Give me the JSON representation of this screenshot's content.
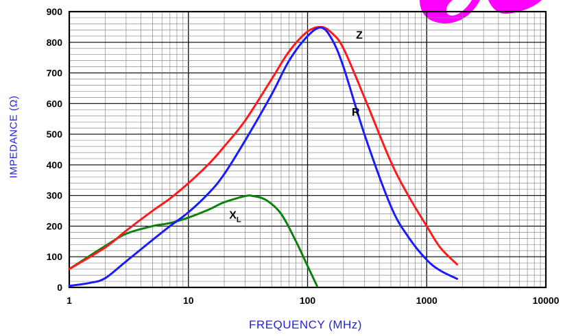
{
  "chart_data": {
    "type": "line",
    "title": "",
    "xlabel": "FREQUENCY (MHz)",
    "ylabel": "IMPEDANCE (Ω)",
    "x_scale": "log",
    "xlim": [
      1,
      10000
    ],
    "ylim": [
      0,
      900
    ],
    "x_ticks": [
      1,
      10,
      100,
      1000,
      10000
    ],
    "x_tick_labels": [
      "1",
      "10",
      "100",
      "1000",
      "10000"
    ],
    "y_ticks": [
      0,
      100,
      200,
      300,
      400,
      500,
      600,
      700,
      800,
      900
    ],
    "y_tick_labels": [
      "0",
      "100",
      "200",
      "300",
      "400",
      "500",
      "600",
      "700",
      "800",
      "900"
    ],
    "grid": true,
    "series": [
      {
        "name": "Z",
        "color": "#ff1a1a",
        "x": [
          1,
          2,
          3,
          5,
          7,
          10,
          15,
          20,
          30,
          50,
          70,
          100,
          130,
          160,
          200,
          300,
          500,
          700,
          1000,
          1300,
          1800
        ],
        "y": [
          60,
          130,
          185,
          250,
          290,
          340,
          405,
          460,
          545,
          680,
          770,
          835,
          850,
          830,
          780,
          620,
          410,
          300,
          200,
          130,
          75
        ]
      },
      {
        "name": "R",
        "color": "#1a1aff",
        "x": [
          1,
          1.5,
          2,
          3,
          5,
          7,
          10,
          15,
          20,
          30,
          50,
          70,
          100,
          130,
          160,
          200,
          300,
          500,
          700,
          1000,
          1300,
          1800
        ],
        "y": [
          5,
          15,
          30,
          85,
          155,
          200,
          245,
          310,
          370,
          480,
          630,
          740,
          820,
          848,
          810,
          720,
          500,
          265,
          165,
          90,
          55,
          28
        ]
      },
      {
        "name": "XL",
        "color": "#0a820a",
        "x": [
          1,
          2,
          3,
          5,
          7,
          10,
          15,
          20,
          30,
          35,
          45,
          60,
          80,
          100,
          120
        ],
        "y": [
          60,
          135,
          175,
          200,
          210,
          228,
          255,
          278,
          298,
          298,
          285,
          240,
          150,
          70,
          5
        ]
      }
    ],
    "annotations": [
      {
        "text": "Z",
        "series": "Z"
      },
      {
        "text": "R",
        "series": "R"
      },
      {
        "text": "X",
        "subscript": "L",
        "series": "XL"
      }
    ]
  },
  "decoration": {
    "color": "#ff00ff"
  }
}
